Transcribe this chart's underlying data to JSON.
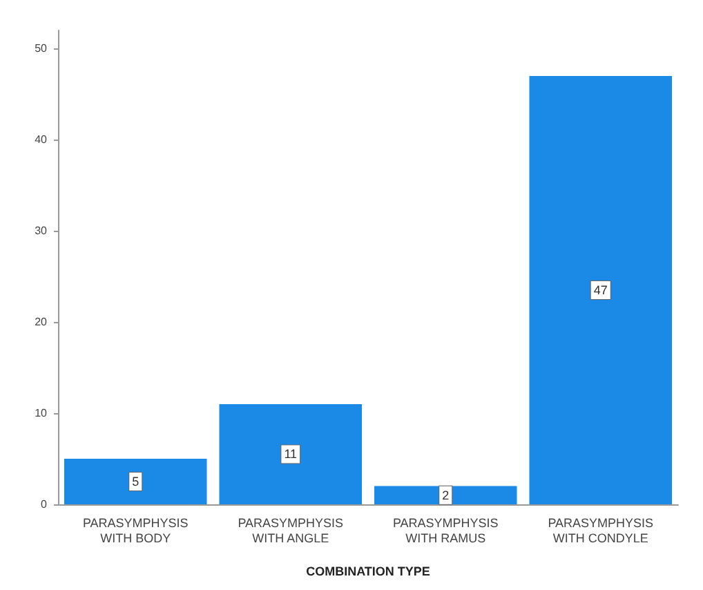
{
  "chart_data": {
    "type": "bar",
    "xlabel": "COMBINATION TYPE",
    "categories": [
      "PARASYMPHYSIS WITH BODY",
      "PARASYMPHYSIS WITH ANGLE",
      "PARASYMPHYSIS WITH RAMUS",
      "PARASYMPHYSIS WITH CONDYLE"
    ],
    "values": [
      5,
      11,
      2,
      47
    ],
    "color": "#1a8ae6",
    "ylim": [
      0,
      52
    ],
    "yticks": [
      0,
      10,
      20,
      30,
      40,
      50
    ],
    "grid": false,
    "data_labels": true
  }
}
